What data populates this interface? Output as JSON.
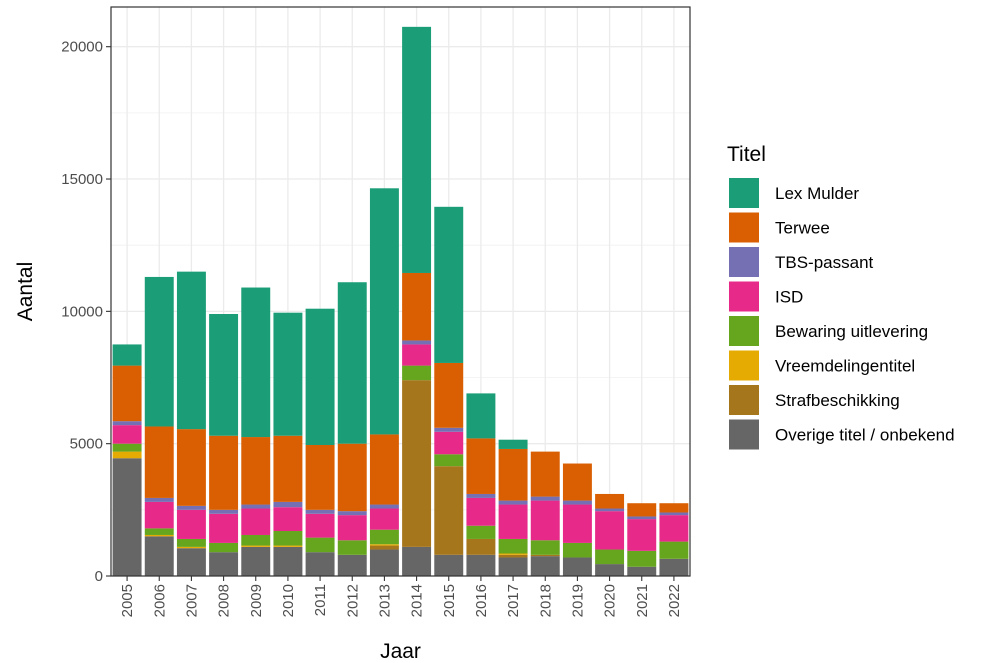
{
  "chart_data": {
    "type": "bar",
    "stacked": true,
    "xlabel": "Jaar",
    "ylabel": "Aantal",
    "ylim": [
      0,
      21500
    ],
    "yticks": [
      0,
      5000,
      10000,
      15000,
      20000
    ],
    "grid": true,
    "legend_title": "Titel",
    "legend_position": "right",
    "categories": [
      "2005",
      "2006",
      "2007",
      "2008",
      "2009",
      "2010",
      "2011",
      "2012",
      "2013",
      "2014",
      "2015",
      "2016",
      "2017",
      "2018",
      "2019",
      "2020",
      "2021",
      "2022"
    ],
    "series": [
      {
        "name": "Overige titel / onbekend",
        "color": "#666666",
        "values": [
          4450,
          1500,
          1050,
          900,
          1100,
          1100,
          900,
          800,
          1000,
          1100,
          800,
          800,
          700,
          750,
          700,
          450,
          350,
          650
        ]
      },
      {
        "name": "Strafbeschikking",
        "color": "#a6761d",
        "values": [
          0,
          0,
          0,
          0,
          0,
          0,
          0,
          0,
          150,
          6300,
          3350,
          600,
          100,
          50,
          0,
          0,
          0,
          0
        ]
      },
      {
        "name": "Vreemdelingentitel",
        "color": "#e6ab02",
        "values": [
          250,
          50,
          50,
          0,
          50,
          50,
          0,
          0,
          50,
          0,
          0,
          0,
          50,
          0,
          0,
          0,
          0,
          0
        ]
      },
      {
        "name": "Bewaring uitlevering",
        "color": "#66a61e",
        "values": [
          300,
          250,
          300,
          350,
          400,
          550,
          550,
          550,
          550,
          550,
          450,
          500,
          550,
          550,
          550,
          550,
          600,
          650
        ]
      },
      {
        "name": "ISD",
        "color": "#e7298a",
        "values": [
          700,
          1000,
          1100,
          1100,
          1000,
          900,
          900,
          950,
          800,
          800,
          850,
          1050,
          1300,
          1500,
          1450,
          1450,
          1200,
          1000
        ]
      },
      {
        "name": "TBS-passant",
        "color": "#7570b3",
        "values": [
          150,
          150,
          150,
          150,
          150,
          200,
          150,
          150,
          150,
          150,
          150,
          150,
          150,
          150,
          150,
          100,
          100,
          100
        ]
      },
      {
        "name": "Terwee",
        "color": "#d95f02",
        "values": [
          2100,
          2700,
          2900,
          2800,
          2550,
          2500,
          2450,
          2550,
          2650,
          2550,
          2450,
          2100,
          1950,
          1700,
          1400,
          550,
          500,
          350
        ]
      },
      {
        "name": "Lex Mulder",
        "color": "#1b9e77",
        "values": [
          800,
          5650,
          5950,
          4600,
          5650,
          4650,
          5150,
          6100,
          9300,
          9300,
          5900,
          1700,
          350,
          0,
          0,
          0,
          0,
          0
        ]
      }
    ],
    "legend_order": [
      "Lex Mulder",
      "Terwee",
      "TBS-passant",
      "ISD",
      "Bewaring uitlevering",
      "Vreemdelingentitel",
      "Strafbeschikking",
      "Overige titel / onbekend"
    ]
  }
}
